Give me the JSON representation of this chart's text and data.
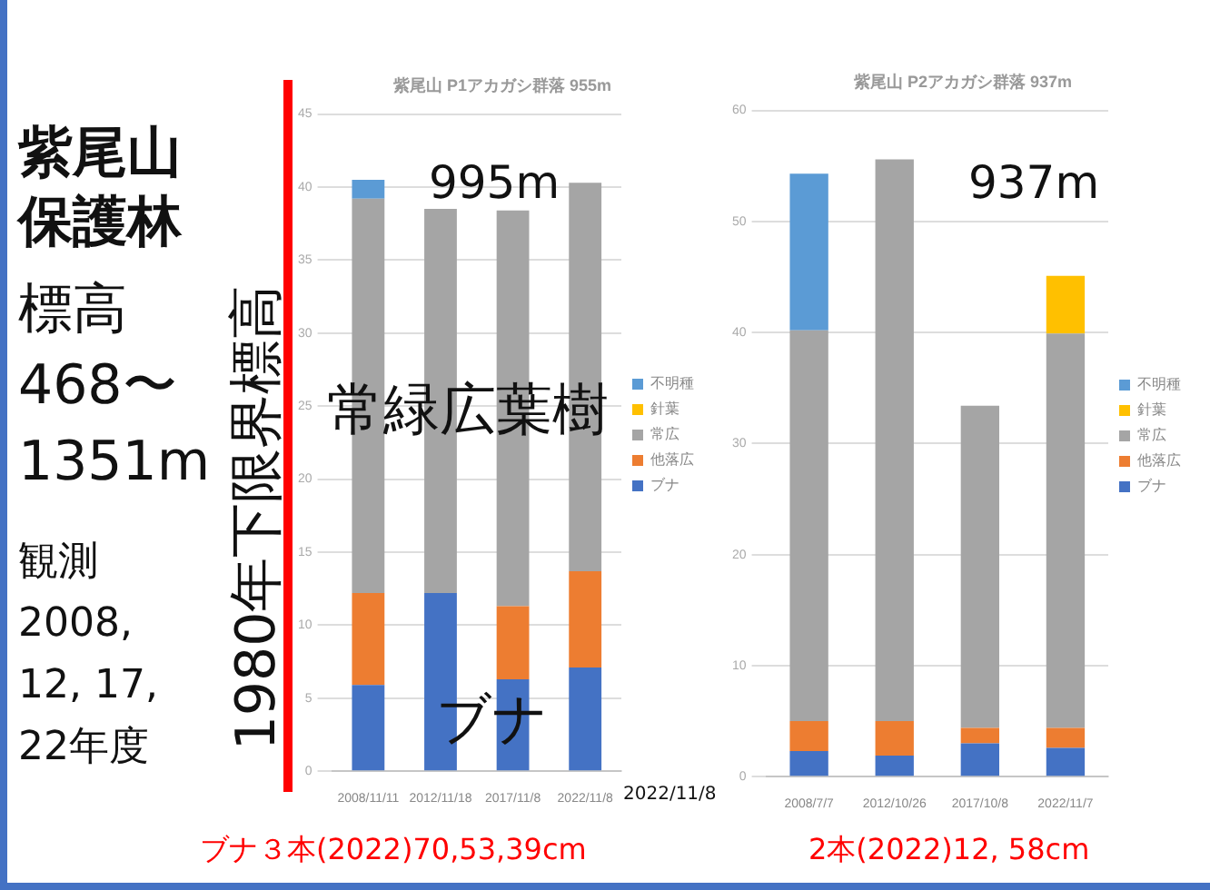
{
  "chart_data": [
    {
      "type": "bar",
      "stacked": true,
      "title": "紫尾山 P1アカガシ群落 955m",
      "categories": [
        "2008/11/11",
        "2012/11/18",
        "2017/11/8",
        "2022/11/8"
      ],
      "series": [
        {
          "name": "ブナ",
          "color": "#4472c4",
          "values": [
            5.9,
            12.2,
            6.3,
            7.1
          ]
        },
        {
          "name": "他落広",
          "color": "#ed7d31",
          "values": [
            6.3,
            null,
            5.0,
            6.6
          ]
        },
        {
          "name": "常広",
          "color": "#a5a5a5",
          "values": [
            27.0,
            26.3,
            27.1,
            26.6
          ]
        },
        {
          "name": "針葉",
          "color": "#ffc000",
          "values": [
            null,
            null,
            null,
            null
          ]
        },
        {
          "name": "不明種",
          "color": "#5b9bd5",
          "values": [
            1.3,
            null,
            null,
            null
          ]
        }
      ],
      "ylim": [
        0,
        45
      ],
      "yticks": [
        0,
        5,
        10,
        15,
        20,
        25,
        30,
        35,
        40,
        45
      ],
      "grid": "y",
      "legend": "right",
      "annotations": [
        "紫尾山保護林",
        "標高\n468〜\n1351m",
        "観測\n2008,\n12, 17,\n22年度",
        "1980年下限界標高",
        "995m",
        "常緑広葉樹",
        "ブナ",
        "2022/11/8",
        "ブナ３本(2022)70,53,39cm"
      ]
    },
    {
      "type": "bar",
      "stacked": true,
      "title": "紫尾山 P2アカガシ群落 937m",
      "categories": [
        "2008/7/7",
        "2012/10/26",
        "2017/10/8",
        "2022/11/7"
      ],
      "series": [
        {
          "name": "ブナ",
          "color": "#4472c4",
          "values": [
            2.3,
            1.9,
            3.0,
            2.6
          ]
        },
        {
          "name": "他落広",
          "color": "#ed7d31",
          "values": [
            2.7,
            3.1,
            1.4,
            1.8
          ]
        },
        {
          "name": "常広",
          "color": "#a5a5a5",
          "values": [
            35.2,
            50.6,
            29.0,
            35.5
          ]
        },
        {
          "name": "針葉",
          "color": "#ffc000",
          "values": [
            null,
            null,
            null,
            5.2
          ]
        },
        {
          "name": "不明種",
          "color": "#5b9bd5",
          "values": [
            14.1,
            null,
            null,
            null
          ]
        }
      ],
      "ylim": [
        0,
        60
      ],
      "yticks": [
        0,
        10,
        20,
        30,
        40,
        50,
        60
      ],
      "grid": "y",
      "legend": "right",
      "annotations": [
        "937m",
        "2本(2022)12, 58cm"
      ]
    }
  ]
}
